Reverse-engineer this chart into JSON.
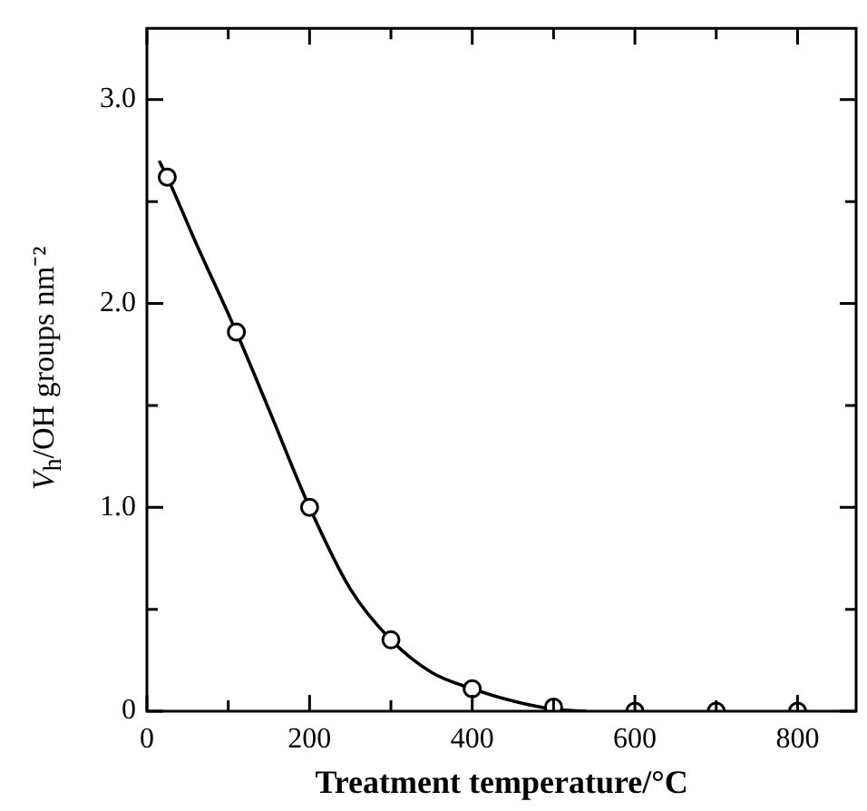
{
  "chart_data": {
    "type": "scatter",
    "xlabel": "Treatment temperature/°C",
    "ylabel": "V$_{h}$/OH groups nm⁻²",
    "xlim": [
      0,
      872
    ],
    "ylim": [
      0,
      3.35
    ],
    "xticks": [
      0,
      {
        "value": 100,
        "label": null
      },
      200,
      {
        "value": 300,
        "label": null
      },
      400,
      {
        "value": 500,
        "label": null
      },
      600,
      {
        "value": 700,
        "label": null
      },
      800
    ],
    "yticks": [
      {
        "value": 0,
        "label": "0"
      },
      {
        "value": 0.5,
        "label": null
      },
      {
        "value": 1,
        "label": "1.0"
      },
      {
        "value": 1.5,
        "label": null
      },
      {
        "value": 2,
        "label": "2.0"
      },
      {
        "value": 2.5,
        "label": null
      },
      {
        "value": 3,
        "label": "3.0"
      }
    ],
    "grid": false,
    "legend": false,
    "series": [
      {
        "color": "#000000",
        "marker": "circle",
        "x": [
          25,
          110,
          200,
          300,
          400,
          500,
          600,
          700,
          800
        ],
        "values": [
          2.62,
          1.86,
          1.0,
          0.35,
          0.11,
          0.02,
          0,
          0,
          0
        ]
      },
      {
        "type": "line",
        "color": "#000000",
        "marker": "none",
        "line_style": "solid",
        "x": [
          15,
          25,
          60,
          110,
          150,
          200,
          250,
          300,
          350,
          400,
          450,
          500,
          540
        ],
        "values": [
          2.7,
          2.62,
          2.3,
          1.86,
          1.48,
          1.0,
          0.6,
          0.35,
          0.19,
          0.11,
          0.05,
          0.01,
          0
        ]
      }
    ]
  }
}
